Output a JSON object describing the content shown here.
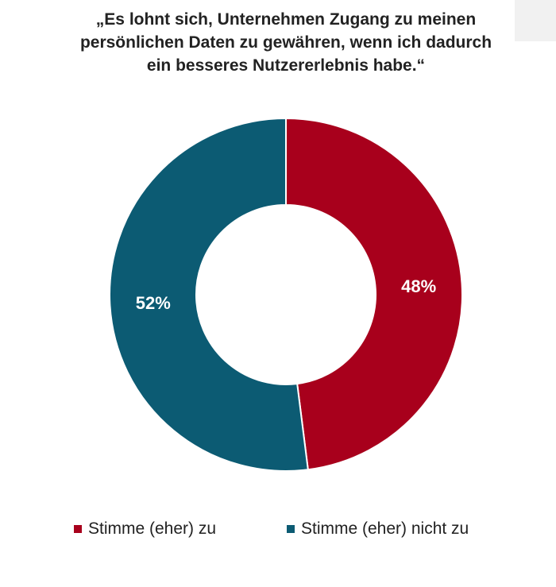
{
  "chart_data": {
    "type": "pie",
    "variant": "donut",
    "title_lines": [
      "„Es lohnt sich, Unternehmen Zugang zu meinen",
      "persönlichen Daten zu gewähren, wenn ich dadurch",
      "ein besseres Nutzererlebnis habe.“"
    ],
    "slices": [
      {
        "label": "Stimme (eher) zu",
        "value": 48,
        "display": "48%",
        "color": "#a8001c"
      },
      {
        "label": "Stimme (eher) nicht zu",
        "value": 52,
        "display": "52%",
        "color": "#0c5b73"
      }
    ],
    "legend": {
      "position": "bottom",
      "items": [
        {
          "label": "Stimme (eher) zu",
          "color": "#a8001c"
        },
        {
          "label": "Stimme (eher) nicht zu",
          "color": "#0c5b73"
        }
      ]
    }
  }
}
